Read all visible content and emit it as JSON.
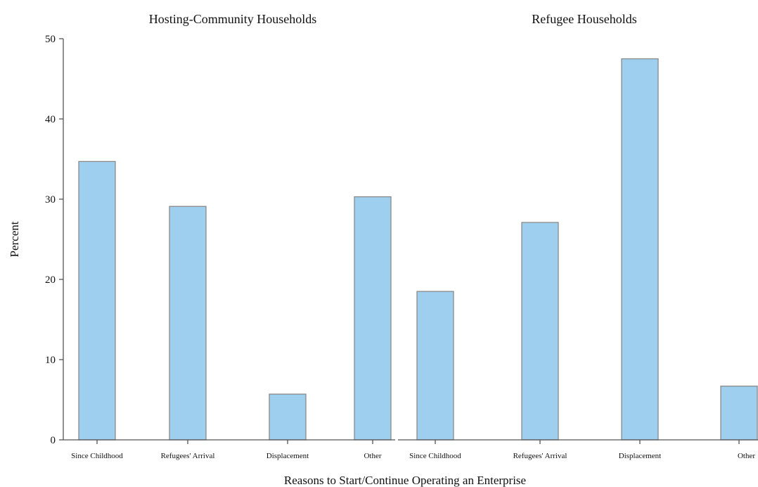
{
  "chart_data": {
    "type": "bar",
    "xlabel": "Reasons to Start/Continue Operating an Enterprise",
    "ylabel": "Percent",
    "ylim": [
      0,
      50
    ],
    "yticks": [
      0,
      10,
      20,
      30,
      40,
      50
    ],
    "grid": false,
    "legend": "none",
    "bar_color": "#9ecfee",
    "bar_edge_color": "#8a8a8a",
    "panels": [
      {
        "title": "Hosting-Community Households",
        "categories": [
          "Since Childhood",
          "Refugees' Arrival",
          "Displacement",
          "Other"
        ],
        "values": [
          34.7,
          29.1,
          5.7,
          30.3
        ]
      },
      {
        "title": "Refugee Households",
        "categories": [
          "Since Childhood",
          "Refugees' Arrival",
          "Displacement",
          "Other"
        ],
        "values": [
          18.5,
          27.1,
          47.5,
          6.7
        ]
      }
    ]
  }
}
